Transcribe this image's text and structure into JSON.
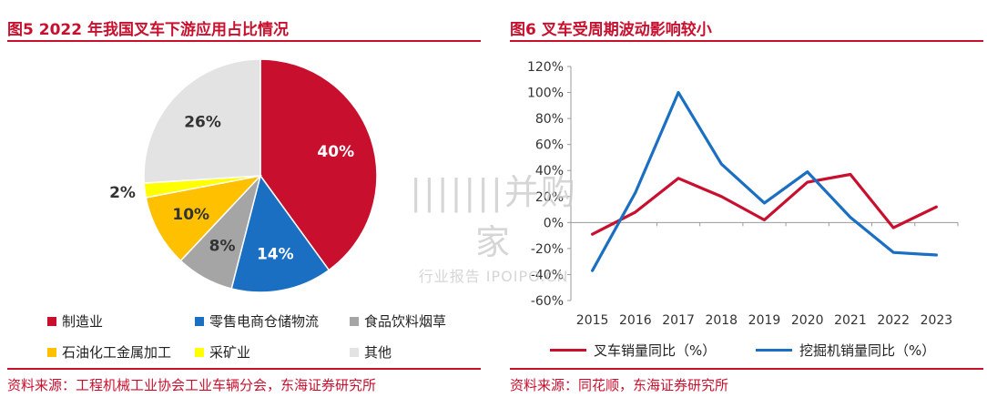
{
  "left_panel": {
    "title": "图5  2022 年我国叉车下游应用占比情况",
    "source": "资料来源：工程机械工业协会工业车辆分会，东海证券研究所"
  },
  "right_panel": {
    "title": "图6  叉车受周期波动影响较小",
    "source": "资料来源：同花顺，东海证券研究所"
  },
  "watermark": {
    "line1": "|||||||并购家",
    "line2": "行业报告 IPOIPO.CN"
  },
  "chart_data": [
    {
      "type": "pie",
      "title": "图5  2022 年我国叉车下游应用占比情况",
      "slices": [
        {
          "label": "制造业",
          "value": 40,
          "display": "40%",
          "color": "#c8102e"
        },
        {
          "label": "零售电商仓储物流",
          "value": 14,
          "display": "14%",
          "color": "#1a6fc2"
        },
        {
          "label": "食品饮料烟草",
          "value": 8,
          "display": "8%",
          "color": "#a5a5a5"
        },
        {
          "label": "石油化工金属加工",
          "value": 10,
          "display": "10%",
          "color": "#ffc000"
        },
        {
          "label": "采矿业",
          "value": 2,
          "display": "2%",
          "color": "#ffff00"
        },
        {
          "label": "其他",
          "value": 26,
          "display": "26%",
          "color": "#e3e3e3"
        }
      ],
      "legend_rows": [
        [
          "制造业",
          "零售电商仓储物流",
          "食品饮料烟草"
        ],
        [
          "石油化工金属加工",
          "采矿业",
          "其他"
        ]
      ]
    },
    {
      "type": "line",
      "title": "图6  叉车受周期波动影响较小",
      "categories": [
        "2015",
        "2016",
        "2017",
        "2018",
        "2019",
        "2020",
        "2021",
        "2022",
        "2023"
      ],
      "series": [
        {
          "name": "叉车销量同比（%）",
          "color": "#c8102e",
          "values": [
            -9,
            8,
            34,
            20,
            2,
            31,
            37,
            -4,
            12
          ]
        },
        {
          "name": "挖掘机销量同比（%）",
          "color": "#1a6fc2",
          "values": [
            -37,
            23,
            100,
            45,
            15,
            39,
            4,
            -23,
            -25
          ]
        }
      ],
      "ylim": [
        -60,
        120
      ],
      "yticks": [
        -60,
        -40,
        -20,
        0,
        20,
        40,
        60,
        80,
        100,
        120
      ],
      "ytick_labels": [
        "-60%",
        "-40%",
        "-20%",
        "0%",
        "20%",
        "40%",
        "60%",
        "80%",
        "100%",
        "120%"
      ],
      "grid": false,
      "legend_position": "bottom"
    }
  ]
}
